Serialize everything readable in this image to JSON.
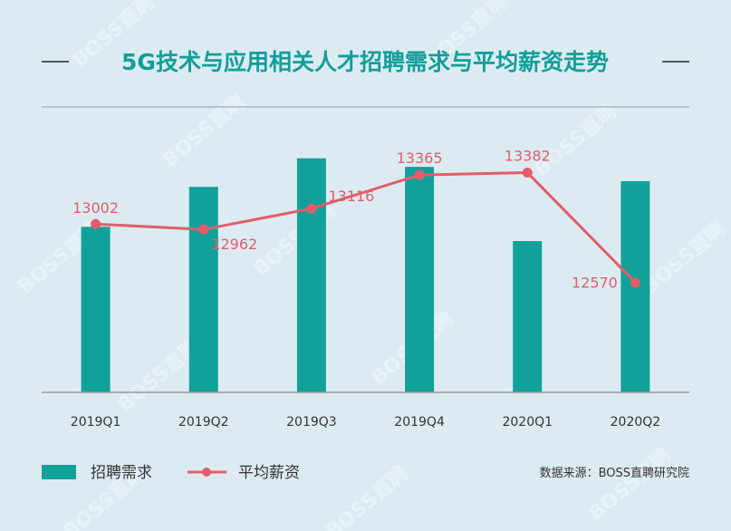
{
  "chart_data": {
    "type": "bar",
    "title": "5G技术与应用相关人才招聘需求与平均薪资走势",
    "categories": [
      "2019Q1",
      "2019Q2",
      "2019Q3",
      "2019Q4",
      "2020Q1",
      "2020Q2"
    ],
    "series": [
      {
        "name": "招聘需求",
        "type": "bar",
        "values": [
          0.58,
          0.72,
          0.82,
          0.79,
          0.53,
          0.74
        ],
        "color": "#12a19a"
      },
      {
        "name": "平均薪资",
        "type": "line",
        "values": [
          13002,
          12962,
          13116,
          13365,
          13382,
          12570
        ],
        "labels": [
          "13002",
          "12962",
          "13116",
          "13365",
          "13382",
          "12570"
        ],
        "color": "#e35d6a"
      }
    ],
    "legend": {
      "position": "bottom-left",
      "items": [
        "招聘需求",
        "平均薪资"
      ]
    },
    "source": "数据来源：BOSS直聘研究院",
    "watermark": "BOSS直聘"
  }
}
